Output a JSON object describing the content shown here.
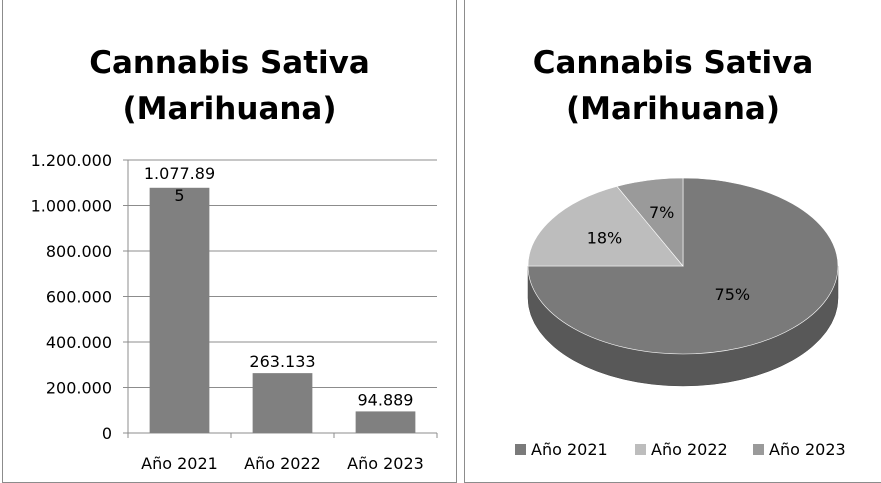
{
  "charts": [
    {
      "title_line1": "Cannabis Sativa",
      "title_line2": "(Marihuana)"
    },
    {
      "title_line1": "Cannabis Sativa",
      "title_line2": "(Marihuana)"
    }
  ],
  "chart_data": [
    {
      "type": "bar",
      "title": "Cannabis Sativa (Marihuana)",
      "categories": [
        "Año 2021",
        "Año 2022",
        "Año 2023"
      ],
      "values": [
        1077895,
        263133,
        94889
      ],
      "data_labels": [
        "1.077.89\n5",
        "263.133",
        "94.889"
      ],
      "yticks": [
        0,
        200000,
        400000,
        600000,
        800000,
        1000000,
        1200000
      ],
      "ytick_labels": [
        "0",
        "200.000",
        "400.000",
        "600.000",
        "800.000",
        "1.000.000",
        "1.200.000"
      ],
      "ylim": [
        0,
        1200000
      ],
      "grid": true,
      "bar_color": "#808080"
    },
    {
      "type": "pie",
      "title": "Cannabis Sativa (Marihuana)",
      "categories": [
        "Año 2021",
        "Año 2022",
        "Año 2023"
      ],
      "values": [
        75,
        18,
        7
      ],
      "data_labels": [
        "75%",
        "18%",
        "7%"
      ],
      "colors": [
        "#7a7a7a",
        "#bdbdbd",
        "#9a9a9a"
      ],
      "legend_position": "bottom",
      "style": "3d"
    }
  ]
}
